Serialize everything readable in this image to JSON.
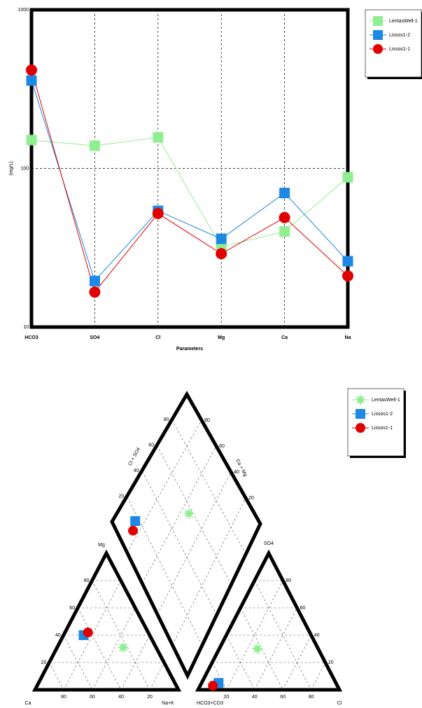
{
  "chart_data": [
    {
      "type": "line",
      "y_label": "(mg/L)",
      "x_label": "Parameters",
      "categories": [
        "HCO3",
        "SO4",
        "Cl",
        "Mg",
        "Ca",
        "Na"
      ],
      "series": [
        {
          "name": "LentasWell-1",
          "color": "#90ee90",
          "marker": "square",
          "values": [
            151,
            139,
            157,
            32,
            40,
            88
          ]
        },
        {
          "name": "Lissos1-2",
          "color": "#1e88e5",
          "marker": "square",
          "values": [
            358,
            19.5,
            54,
            36,
            70,
            26
          ]
        },
        {
          "name": "Lissos1-1",
          "color": "#e00000",
          "marker": "circle",
          "values": [
            417,
            16.6,
            52,
            29,
            49,
            21
          ]
        }
      ],
      "ylim": [
        10,
        1000
      ],
      "yticks": [
        10,
        100,
        1000
      ],
      "log_y": true,
      "grid": true,
      "legend": "right"
    },
    {
      "type": "piper",
      "cation_labels": [
        "Ca",
        "Mg",
        "Na+K"
      ],
      "anion_labels": [
        "HCO3+CO3",
        "SO4",
        "Cl"
      ],
      "diamond_labels": [
        "Cl + SO4",
        "Ca + Mg"
      ],
      "ticks": [
        20,
        40,
        60,
        80
      ],
      "series": [
        {
          "name": "LentasWell-1",
          "color": "#90ee90",
          "marker": "star",
          "cations": [
            23,
            31,
            46
          ],
          "anions": [
            43,
            30,
            27
          ]
        },
        {
          "name": "Lissos1-2",
          "color": "#1e88e5",
          "marker": "square",
          "cations": [
            46,
            40,
            14
          ],
          "anions": [
            83,
            5,
            12
          ]
        },
        {
          "name": "Lissos1-1",
          "color": "#e00000",
          "marker": "circle",
          "cations": [
            42,
            42,
            16
          ],
          "anions": [
            88,
            3,
            9
          ]
        }
      ],
      "grid": true,
      "legend": "right"
    }
  ]
}
